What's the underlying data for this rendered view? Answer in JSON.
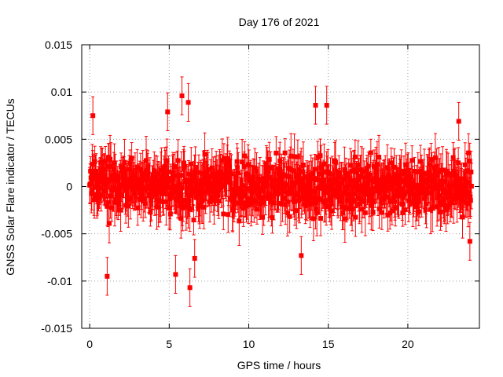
{
  "chart_data": {
    "type": "scatter",
    "title": "Day 176 of 2021",
    "xlabel": "GPS time / hours",
    "ylabel": "GNSS Solar Flare indicator / TECUs",
    "xlim": [
      -0.5,
      24.5
    ],
    "ylim": [
      -0.015,
      0.015
    ],
    "xticks": [
      "0",
      "5",
      "10",
      "15",
      "20"
    ],
    "yticks": [
      "-0.015",
      "-0.01",
      "-0.005",
      "0",
      "0.005",
      "0.01",
      "0.015"
    ],
    "grid": true,
    "legend": "none",
    "series": [
      {
        "color": "#ff0000",
        "marker": "square",
        "error_bars": true,
        "notable_points": [
          {
            "x": 0.2,
            "y": 0.0075
          },
          {
            "x": 1.1,
            "y": -0.0095
          },
          {
            "x": 4.9,
            "y": 0.0079
          },
          {
            "x": 5.4,
            "y": -0.0093
          },
          {
            "x": 5.8,
            "y": 0.0096
          },
          {
            "x": 6.2,
            "y": 0.0089
          },
          {
            "x": 6.3,
            "y": -0.0107
          },
          {
            "x": 6.6,
            "y": -0.0076
          },
          {
            "x": 13.3,
            "y": -0.0073
          },
          {
            "x": 14.2,
            "y": 0.0086
          },
          {
            "x": 14.9,
            "y": 0.0086
          },
          {
            "x": 23.2,
            "y": 0.0069
          },
          {
            "x": 23.9,
            "y": -0.0058
          }
        ],
        "bulk": {
          "x_range": [
            0.0,
            24.0
          ],
          "typical_y_range": [
            -0.005,
            0.005
          ],
          "typical_error": 0.002
        }
      }
    ]
  }
}
